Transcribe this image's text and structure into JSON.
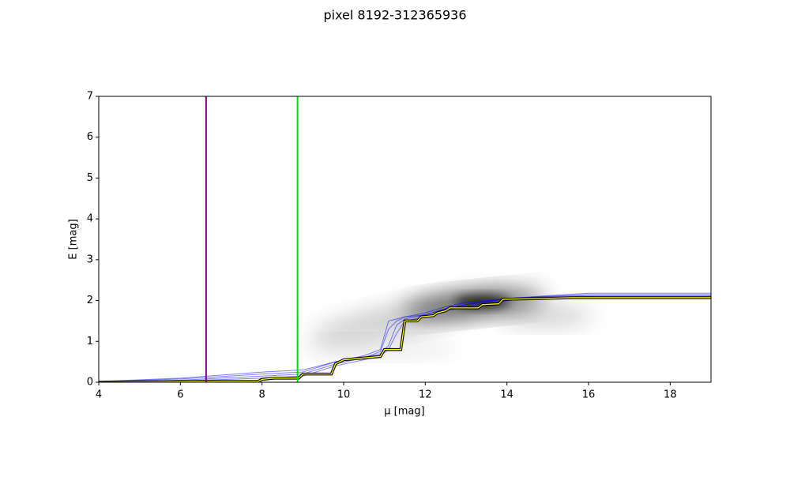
{
  "chart_data": {
    "type": "line",
    "title": "pixel 8192-312365936",
    "x_label": "μ [mag]",
    "y_label": "E [mag]",
    "xlim": [
      4,
      19
    ],
    "ylim": [
      0,
      7
    ],
    "xticks": [
      4,
      6,
      8,
      10,
      12,
      14,
      16,
      18
    ],
    "yticks": [
      0,
      1,
      2,
      3,
      4,
      5,
      6,
      7
    ],
    "vlines": [
      {
        "x": 6.63,
        "color": "#800080"
      },
      {
        "x": 8.87,
        "color": "#00dd00"
      }
    ],
    "series": [
      {
        "color": "#0000ff",
        "x": [
          4,
          6,
          8,
          9,
          9.8,
          10.5,
          10.9,
          11.1,
          11.3,
          11.5,
          12,
          12.5,
          13,
          14,
          15,
          16,
          19
        ],
        "values": [
          0,
          0.05,
          0.15,
          0.2,
          0.45,
          0.6,
          0.7,
          0.9,
          1.4,
          1.55,
          1.65,
          1.8,
          1.9,
          2.05,
          2.1,
          2.15,
          2.15
        ]
      },
      {
        "color": "#0000ff",
        "x": [
          4,
          6,
          8,
          9,
          9.8,
          10.5,
          10.9,
          11.1,
          11.3,
          11.5,
          12,
          12.5,
          13,
          14,
          15,
          16,
          19
        ],
        "values": [
          0.02,
          0.1,
          0.25,
          0.3,
          0.5,
          0.65,
          0.8,
          1.5,
          1.55,
          1.6,
          1.7,
          1.85,
          1.95,
          2.05,
          2.12,
          2.18,
          2.18
        ]
      },
      {
        "color": "#0000ff",
        "x": [
          4,
          6,
          8,
          9,
          9.8,
          10.5,
          10.9,
          11.1,
          11.3,
          11.5,
          12,
          12.5,
          13,
          14,
          15,
          16,
          19
        ],
        "values": [
          0,
          0.03,
          0.1,
          0.15,
          0.4,
          0.55,
          0.65,
          0.8,
          1.2,
          1.5,
          1.6,
          1.75,
          1.85,
          2.0,
          2.08,
          2.1,
          2.1
        ]
      },
      {
        "color": "#0000ff",
        "x": [
          4,
          6,
          8,
          9,
          9.8,
          10.5,
          10.9,
          11.1,
          11.3,
          11.5,
          12,
          12.5,
          13,
          14,
          15,
          16,
          19
        ],
        "values": [
          0.01,
          0.08,
          0.2,
          0.25,
          0.5,
          0.6,
          0.75,
          1.3,
          1.5,
          1.6,
          1.65,
          1.8,
          1.9,
          2.05,
          2.1,
          2.12,
          2.12
        ]
      },
      {
        "color": "#ffff00",
        "x": [
          4,
          6.3,
          7.9,
          8.0,
          8.3,
          8.9,
          9.0,
          9.7,
          9.8,
          10.0,
          10.9,
          11.0,
          11.4,
          11.5,
          11.8,
          11.9,
          12.2,
          12.3,
          12.5,
          12.6,
          13.3,
          13.4,
          13.8,
          13.9,
          14.8,
          15.6,
          19
        ],
        "values": [
          0,
          0.02,
          0.02,
          0.07,
          0.1,
          0.1,
          0.2,
          0.2,
          0.45,
          0.55,
          0.63,
          0.8,
          0.8,
          1.5,
          1.5,
          1.6,
          1.63,
          1.7,
          1.75,
          1.82,
          1.82,
          1.9,
          1.92,
          2.03,
          2.05,
          2.07,
          2.07
        ]
      }
    ]
  }
}
